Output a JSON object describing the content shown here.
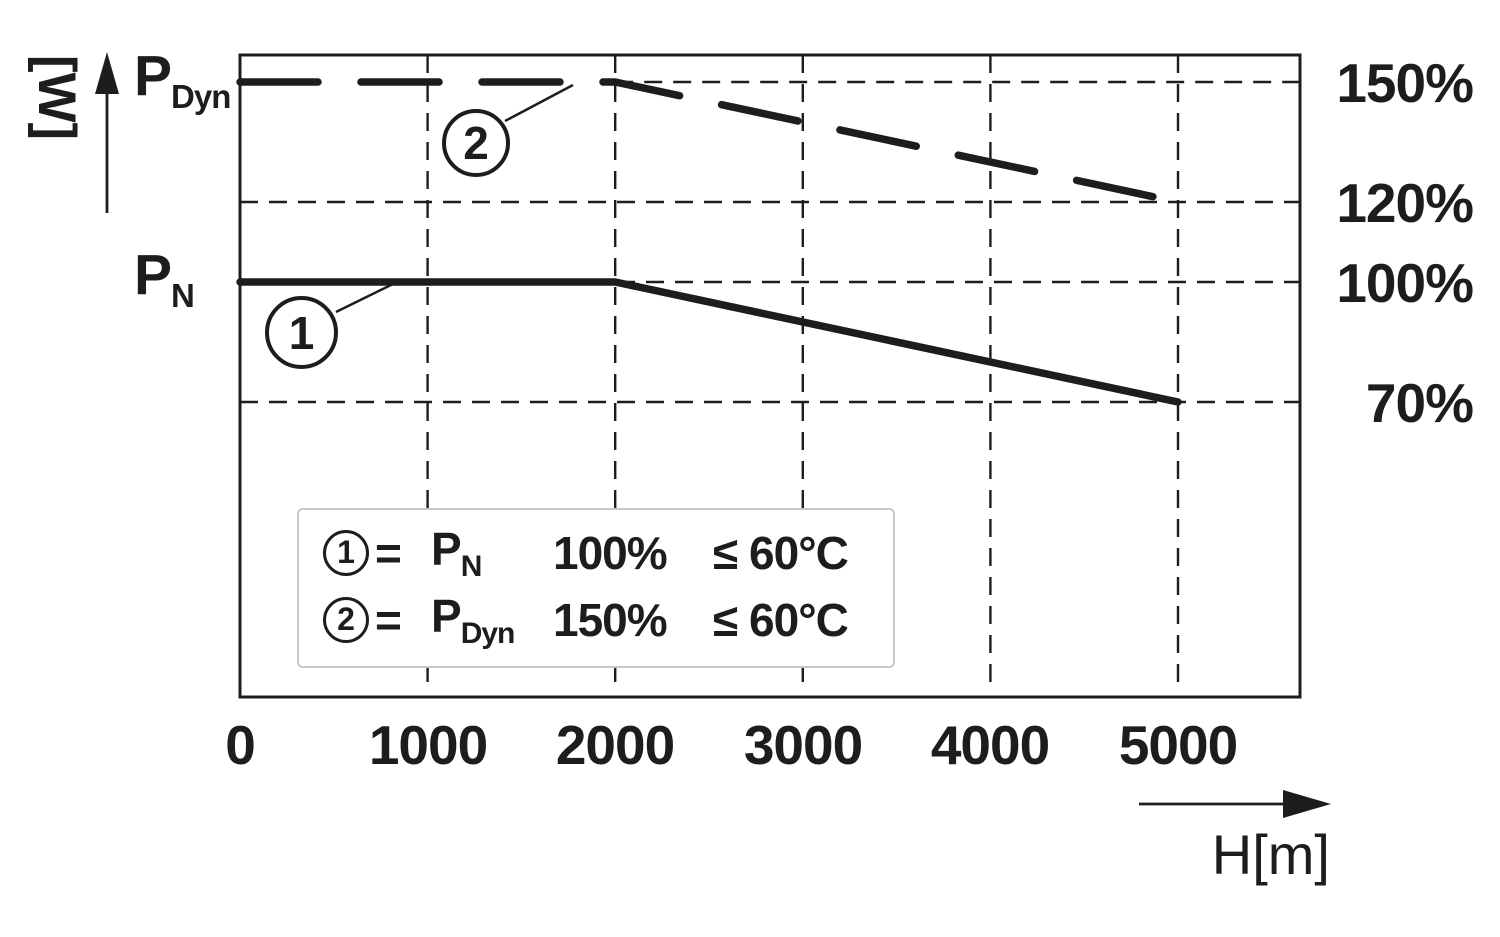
{
  "chart_data": {
    "type": "line",
    "x_axis": {
      "unit_label": "H[m]",
      "ticks_m": [
        0,
        1000,
        2000,
        3000,
        4000,
        5000
      ],
      "tick_labels": [
        "0",
        "1000",
        "2000",
        "3000",
        "4000",
        "5000"
      ],
      "range_m": [
        0,
        5650
      ]
    },
    "y_axis": {
      "unit_label": "[W]",
      "tick_labels": [
        "150%",
        "120%",
        "100%",
        "70%"
      ],
      "tick_values_pct": [
        150,
        120,
        100,
        70
      ]
    },
    "grid": "dashed",
    "legend_position": "inside-bottom-left",
    "series": [
      {
        "name": "P_Dyn",
        "callout_number": "2",
        "line_style": "dashed",
        "points": [
          {
            "x_m": 0,
            "y_pct": 150
          },
          {
            "x_m": 2000,
            "y_pct": 150
          },
          {
            "x_m": 5000,
            "y_pct": 120
          }
        ]
      },
      {
        "name": "P_N",
        "callout_number": "1",
        "line_style": "solid",
        "points": [
          {
            "x_m": 0,
            "y_pct": 100
          },
          {
            "x_m": 2000,
            "y_pct": 100
          },
          {
            "x_m": 5000,
            "y_pct": 70
          }
        ]
      }
    ]
  },
  "axis_labels": {
    "y_unit": "[W]",
    "x_unit": "H[m]",
    "p_dyn": {
      "main": "P",
      "sub": "Dyn"
    },
    "p_n": {
      "main": "P",
      "sub": "N"
    }
  },
  "callouts": {
    "c1": "1",
    "c2": "2"
  },
  "legend": {
    "rows": [
      {
        "num": "1",
        "eq": "=",
        "sym_main": "P",
        "sym_sub": "N",
        "pct": "100%",
        "cond": "≤ 60°C"
      },
      {
        "num": "2",
        "eq": "=",
        "sym_main": "P",
        "sym_sub": "Dyn",
        "pct": "150%",
        "cond": "≤ 60°C"
      }
    ]
  },
  "colors": {
    "line": "#1d1d1b",
    "legend_border": "#c8c8c8",
    "background": "#ffffff"
  }
}
